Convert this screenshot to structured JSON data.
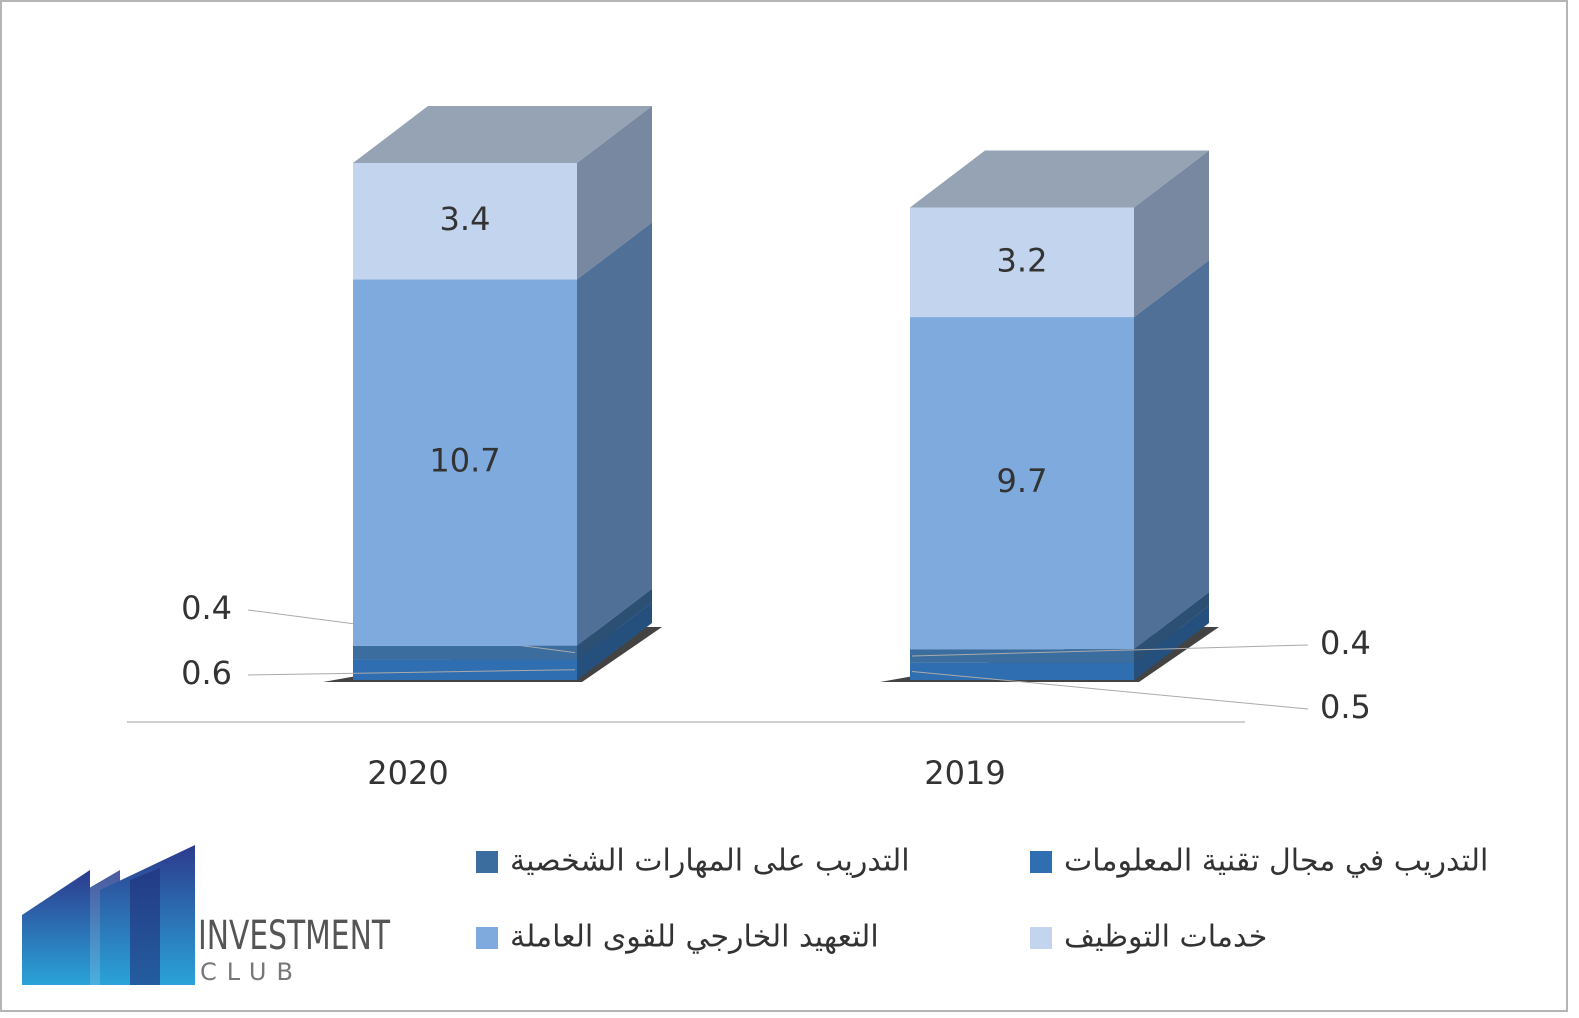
{
  "chart_data": {
    "type": "bar3d_stacked",
    "categories": [
      "2020",
      "2019"
    ],
    "series": [
      {
        "name": "التدريب في مجال تقنية المعلومات",
        "color": "#2f6eb0",
        "values": [
          0.6,
          0.5
        ]
      },
      {
        "name": "التدريب على المهارات الشخصية",
        "color": "#3b6d9f",
        "values": [
          0.4,
          0.4
        ]
      },
      {
        "name": "التعهيد الخارجي للقوى العاملة",
        "color": "#7eaade",
        "values": [
          10.7,
          9.7
        ]
      },
      {
        "name": "خدمات التوظيف",
        "color": "#c3d5ee",
        "values": [
          3.4,
          3.2
        ]
      }
    ]
  },
  "logo": {
    "line1": "INVESTMENT",
    "line2": "CLUB"
  }
}
